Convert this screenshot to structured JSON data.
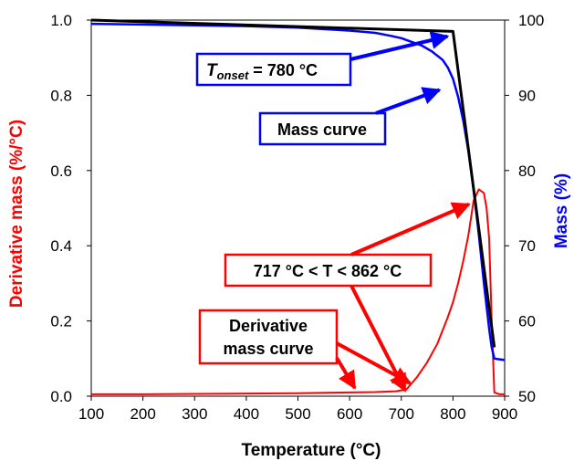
{
  "chart_data": {
    "type": "line",
    "xlabel": "Temperature (°C)",
    "ylabel_left": "Derivative mass (%/°C)",
    "ylabel_right": "Mass (%)",
    "xlim": [
      100,
      900
    ],
    "ylim_left": [
      0.0,
      1.0
    ],
    "ylim_right": [
      50,
      100
    ],
    "x_ticks": [
      100,
      200,
      300,
      400,
      500,
      600,
      700,
      800,
      900
    ],
    "y_left_ticks": [
      "0.0",
      "0.2",
      "0.4",
      "0.6",
      "0.8",
      "1.0"
    ],
    "y_right_ticks": [
      "50",
      "60",
      "70",
      "80",
      "90",
      "100"
    ],
    "grid": false,
    "colors": {
      "mass": "#0000ff",
      "derivative": "#ff0000",
      "tangent": "#000000"
    },
    "series": [
      {
        "axis": "right",
        "x": [
          100,
          200,
          300,
          400,
          500,
          550,
          600,
          650,
          680,
          700,
          720,
          740,
          760,
          780,
          790,
          800,
          810,
          820,
          830,
          840,
          850,
          860,
          870,
          875,
          880,
          890,
          900
        ],
        "y": [
          99.5,
          99.4,
          99.3,
          99.2,
          99.0,
          98.8,
          98.6,
          98.3,
          97.9,
          97.6,
          97.1,
          96.6,
          95.8,
          94.7,
          93.7,
          92.2,
          89.8,
          86.6,
          82.5,
          77.5,
          71.5,
          65.0,
          59.0,
          56.5,
          55.0,
          54.9,
          54.8
        ]
      },
      {
        "axis": "left",
        "x": [
          100,
          200,
          300,
          400,
          500,
          600,
          650,
          690,
          710,
          730,
          750,
          770,
          790,
          800,
          810,
          820,
          830,
          840,
          850,
          860,
          865,
          870,
          875,
          880,
          890,
          900
        ],
        "y": [
          0.005,
          0.005,
          0.006,
          0.007,
          0.008,
          0.01,
          0.011,
          0.013,
          0.018,
          0.05,
          0.09,
          0.14,
          0.21,
          0.25,
          0.3,
          0.36,
          0.43,
          0.52,
          0.55,
          0.54,
          0.5,
          0.42,
          0.2,
          0.01,
          0.005,
          0.005
        ]
      },
      {
        "axis": "right",
        "x": [
          100,
          800,
          880
        ],
        "y": [
          100,
          98.5,
          56.5
        ]
      }
    ],
    "annotations": [
      {
        "label_prefix": "T",
        "label_sub": "onset",
        "label_suffix": " = 780 °C",
        "color": "#0000ff",
        "arrow_to": [
          800,
          98.2
        ]
      },
      {
        "label": "Mass curve",
        "color": "#0000ff",
        "arrow_to": [
          795,
          91.2
        ]
      },
      {
        "label": "717 °C < T < 862 °C",
        "color": "#ff0000",
        "arrow_to": [
          838,
          0.52
        ]
      },
      {
        "label_line1": "Derivative",
        "label_line2": "mass curve",
        "color": "#ff0000",
        "arrows_to": [
          [
            610,
            0.012
          ],
          [
            717,
            0.02
          ]
        ]
      }
    ]
  }
}
